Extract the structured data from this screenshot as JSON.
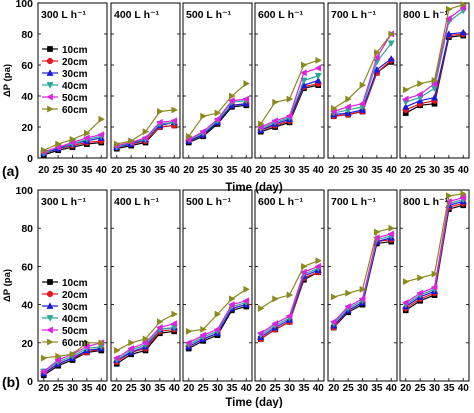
{
  "figure": {
    "ylabel": "ΔP (pa)",
    "xlabel": "Time (day)",
    "x_ticks": [
      "20",
      "25",
      "30",
      "35",
      "40"
    ],
    "y_ticks": [
      "0",
      "20",
      "40",
      "60",
      "80",
      "100"
    ],
    "panels": [
      "(a)",
      "(b)"
    ]
  },
  "chart_data": [
    {
      "type": "line",
      "panel_label": "(a)",
      "xlabel": "Time (day)",
      "ylabel": "ΔP (pa)",
      "ylim": [
        0,
        100
      ],
      "xlim": [
        18,
        42
      ],
      "x": [
        20,
        25,
        30,
        35,
        40
      ],
      "legend_entries": [
        "10cm",
        "20cm",
        "30cm",
        "40cm",
        "50cm",
        "60cm"
      ],
      "legend_placement": "left, first subplot",
      "colors": {
        "10cm": "#000000",
        "20cm": "#e8141e",
        "30cm": "#1a1adc",
        "40cm": "#2aa898",
        "50cm": "#e020e0",
        "60cm": "#8a8a1e"
      },
      "markers": {
        "10cm": "square",
        "20cm": "circle",
        "30cm": "triangle-up",
        "40cm": "triangle-down",
        "50cm": "triangle-left",
        "60cm": "triangle-right"
      },
      "subplots": [
        {
          "title": "300 L h⁻¹",
          "series": [
            {
              "name": "10cm",
              "values": [
                2,
                5,
                7,
                9,
                10
              ]
            },
            {
              "name": "20cm",
              "values": [
                3,
                6,
                8,
                10,
                11
              ]
            },
            {
              "name": "30cm",
              "values": [
                3,
                6,
                9,
                11,
                13
              ]
            },
            {
              "name": "40cm",
              "values": [
                3,
                7,
                9,
                12,
                14
              ]
            },
            {
              "name": "50cm",
              "values": [
                4,
                7,
                10,
                13,
                15
              ]
            },
            {
              "name": "60cm",
              "values": [
                5,
                9,
                12,
                16,
                25
              ]
            }
          ]
        },
        {
          "title": "400 L h⁻¹",
          "series": [
            {
              "name": "10cm",
              "values": [
                6,
                8,
                10,
                20,
                21
              ]
            },
            {
              "name": "20cm",
              "values": [
                7,
                9,
                11,
                20,
                21
              ]
            },
            {
              "name": "30cm",
              "values": [
                7,
                9,
                12,
                21,
                23
              ]
            },
            {
              "name": "40cm",
              "values": [
                7,
                10,
                12,
                22,
                23
              ]
            },
            {
              "name": "50cm",
              "values": [
                8,
                10,
                13,
                23,
                24
              ]
            },
            {
              "name": "60cm",
              "values": [
                9,
                11,
                17,
                30,
                31
              ]
            }
          ]
        },
        {
          "title": "500 L h⁻¹",
          "series": [
            {
              "name": "10cm",
              "values": [
                10,
                14,
                22,
                33,
                34
              ]
            },
            {
              "name": "20cm",
              "values": [
                11,
                15,
                23,
                34,
                35
              ]
            },
            {
              "name": "30cm",
              "values": [
                11,
                15,
                23,
                34,
                35
              ]
            },
            {
              "name": "40cm",
              "values": [
                12,
                16,
                24,
                36,
                37
              ]
            },
            {
              "name": "50cm",
              "values": [
                12,
                17,
                25,
                37,
                38
              ]
            },
            {
              "name": "60cm",
              "values": [
                14,
                27,
                29,
                40,
                48
              ]
            }
          ]
        },
        {
          "title": "600 L h⁻¹",
          "series": [
            {
              "name": "10cm",
              "values": [
                17,
                20,
                23,
                45,
                47
              ]
            },
            {
              "name": "20cm",
              "values": [
                18,
                21,
                24,
                46,
                48
              ]
            },
            {
              "name": "30cm",
              "values": [
                18,
                22,
                25,
                47,
                50
              ]
            },
            {
              "name": "40cm",
              "values": [
                19,
                23,
                26,
                50,
                53
              ]
            },
            {
              "name": "50cm",
              "values": [
                20,
                24,
                27,
                55,
                58
              ]
            },
            {
              "name": "60cm",
              "values": [
                22,
                36,
                38,
                60,
                63
              ]
            }
          ]
        },
        {
          "title": "700 L h⁻¹",
          "series": [
            {
              "name": "10cm",
              "values": [
                27,
                28,
                30,
                55,
                62
              ]
            },
            {
              "name": "20cm",
              "values": [
                27,
                28,
                30,
                55,
                63
              ]
            },
            {
              "name": "30cm",
              "values": [
                28,
                29,
                31,
                57,
                64
              ]
            },
            {
              "name": "40cm",
              "values": [
                29,
                31,
                33,
                62,
                74
              ]
            },
            {
              "name": "50cm",
              "values": [
                30,
                33,
                35,
                65,
                80
              ]
            },
            {
              "name": "60cm",
              "values": [
                32,
                38,
                47,
                68,
                80
              ]
            }
          ]
        },
        {
          "title": "800 L h⁻¹",
          "series": [
            {
              "name": "10cm",
              "values": [
                29,
                34,
                35,
                78,
                79
              ]
            },
            {
              "name": "20cm",
              "values": [
                31,
                35,
                37,
                79,
                80
              ]
            },
            {
              "name": "30cm",
              "values": [
                33,
                37,
                39,
                80,
                81
              ]
            },
            {
              "name": "40cm",
              "values": [
                36,
                39,
                45,
                88,
                95
              ]
            },
            {
              "name": "50cm",
              "values": [
                38,
                41,
                48,
                90,
                97
              ]
            },
            {
              "name": "60cm",
              "values": [
                44,
                48,
                50,
                96,
                99
              ]
            }
          ]
        }
      ]
    },
    {
      "type": "line",
      "panel_label": "(b)",
      "xlabel": "Time (day)",
      "ylabel": "ΔP (pa)",
      "ylim": [
        0,
        100
      ],
      "xlim": [
        18,
        42
      ],
      "x": [
        20,
        25,
        30,
        35,
        40
      ],
      "legend_entries": [
        "10cm",
        "20cm",
        "30cm",
        "40cm",
        "50cm",
        "60cm"
      ],
      "legend_placement": "left, first subplot",
      "colors": {
        "10cm": "#000000",
        "20cm": "#e8141e",
        "30cm": "#1a1adc",
        "40cm": "#2aa898",
        "50cm": "#e020e0",
        "60cm": "#8a8a1e"
      },
      "markers": {
        "10cm": "square",
        "20cm": "circle",
        "30cm": "triangle-up",
        "40cm": "triangle-down",
        "50cm": "triangle-left",
        "60cm": "triangle-right"
      },
      "subplots": [
        {
          "title": "300 L h⁻¹",
          "series": [
            {
              "name": "10cm",
              "values": [
                3,
                8,
                11,
                15,
                16
              ]
            },
            {
              "name": "20cm",
              "values": [
                4,
                9,
                12,
                15,
                17
              ]
            },
            {
              "name": "30cm",
              "values": [
                4,
                9,
                12,
                16,
                17
              ]
            },
            {
              "name": "40cm",
              "values": [
                5,
                10,
                13,
                17,
                18
              ]
            },
            {
              "name": "50cm",
              "values": [
                5,
                11,
                14,
                18,
                20
              ]
            },
            {
              "name": "60cm",
              "values": [
                12,
                13,
                14,
                20,
                20
              ]
            }
          ]
        },
        {
          "title": "400 L h⁻¹",
          "series": [
            {
              "name": "10cm",
              "values": [
                9,
                14,
                16,
                25,
                26
              ]
            },
            {
              "name": "20cm",
              "values": [
                10,
                15,
                17,
                26,
                27
              ]
            },
            {
              "name": "30cm",
              "values": [
                11,
                15,
                18,
                27,
                28
              ]
            },
            {
              "name": "40cm",
              "values": [
                11,
                16,
                19,
                27,
                28
              ]
            },
            {
              "name": "50cm",
              "values": [
                12,
                17,
                20,
                28,
                30
              ]
            },
            {
              "name": "60cm",
              "values": [
                16,
                20,
                22,
                31,
                35
              ]
            }
          ]
        },
        {
          "title": "500 L h⁻¹",
          "series": [
            {
              "name": "10cm",
              "values": [
                17,
                21,
                24,
                37,
                39
              ]
            },
            {
              "name": "20cm",
              "values": [
                18,
                22,
                25,
                38,
                40
              ]
            },
            {
              "name": "30cm",
              "values": [
                18,
                22,
                25,
                38,
                40
              ]
            },
            {
              "name": "40cm",
              "values": [
                19,
                23,
                26,
                39,
                41
              ]
            },
            {
              "name": "50cm",
              "values": [
                20,
                24,
                27,
                40,
                42
              ]
            },
            {
              "name": "60cm",
              "values": [
                26,
                27,
                35,
                43,
                48
              ]
            }
          ]
        },
        {
          "title": "600 L h⁻¹",
          "series": [
            {
              "name": "10cm",
              "values": [
                22,
                27,
                31,
                53,
                57
              ]
            },
            {
              "name": "20cm",
              "values": [
                22,
                27,
                31,
                54,
                57
              ]
            },
            {
              "name": "30cm",
              "values": [
                23,
                28,
                32,
                55,
                58
              ]
            },
            {
              "name": "40cm",
              "values": [
                24,
                29,
                33,
                56,
                59
              ]
            },
            {
              "name": "50cm",
              "values": [
                25,
                30,
                34,
                57,
                60
              ]
            },
            {
              "name": "60cm",
              "values": [
                38,
                43,
                45,
                60,
                63
              ]
            }
          ]
        },
        {
          "title": "700 L h⁻¹",
          "series": [
            {
              "name": "10cm",
              "values": [
                28,
                36,
                40,
                72,
                73
              ]
            },
            {
              "name": "20cm",
              "values": [
                28,
                37,
                41,
                73,
                74
              ]
            },
            {
              "name": "30cm",
              "values": [
                29,
                37,
                41,
                73,
                75
              ]
            },
            {
              "name": "40cm",
              "values": [
                30,
                38,
                42,
                74,
                76
              ]
            },
            {
              "name": "50cm",
              "values": [
                31,
                39,
                43,
                75,
                77
              ]
            },
            {
              "name": "60cm",
              "values": [
                44,
                46,
                48,
                78,
                80
              ]
            }
          ]
        },
        {
          "title": "800 L h⁻¹",
          "series": [
            {
              "name": "10cm",
              "values": [
                37,
                42,
                45,
                90,
                92
              ]
            },
            {
              "name": "20cm",
              "values": [
                38,
                43,
                46,
                91,
                93
              ]
            },
            {
              "name": "30cm",
              "values": [
                39,
                44,
                47,
                92,
                94
              ]
            },
            {
              "name": "40cm",
              "values": [
                40,
                45,
                48,
                93,
                95
              ]
            },
            {
              "name": "50cm",
              "values": [
                41,
                46,
                49,
                94,
                96
              ]
            },
            {
              "name": "60cm",
              "values": [
                52,
                54,
                56,
                97,
                98
              ]
            }
          ]
        }
      ]
    }
  ]
}
